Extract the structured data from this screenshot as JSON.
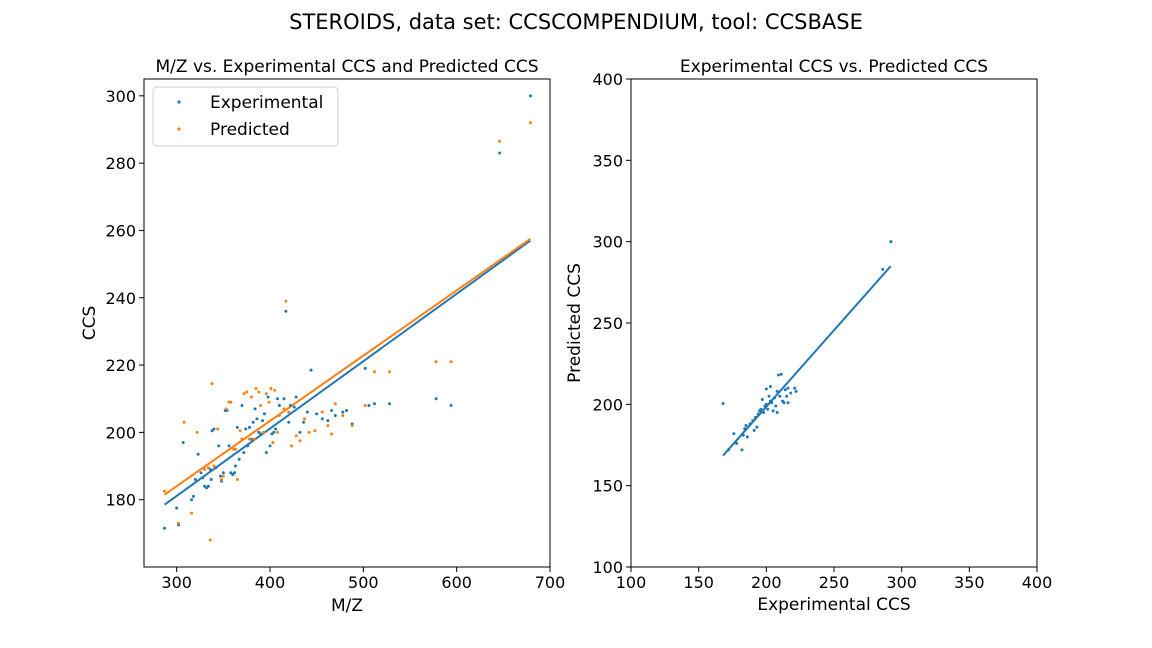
{
  "figure": {
    "suptitle": "STEROIDS, data set: CCSCOMPENDIUM, tool: CCSBASE"
  },
  "colors": {
    "experimental": "#1f77b4",
    "predicted": "#ff7f0e",
    "axis": "#000000",
    "legend_border": "#cccccc"
  },
  "chart_data": [
    {
      "type": "scatter",
      "title": "M/Z vs. Experimental CCS and Predicted CCS",
      "xlabel": "M/Z",
      "ylabel": "CCS",
      "xlim": [
        265,
        700
      ],
      "ylim": [
        160,
        305
      ],
      "xticks": [
        300,
        400,
        500,
        600,
        700
      ],
      "yticks": [
        180,
        200,
        220,
        240,
        260,
        280,
        300
      ],
      "legend": {
        "placement": "upper-left",
        "entries": [
          "Experimental",
          "Predicted"
        ]
      },
      "series": [
        {
          "name": "Experimental",
          "color": "#1f77b4",
          "points": [
            [
              287,
              171.5
            ],
            [
              300,
              177.5
            ],
            [
              302,
              172.5
            ],
            [
              307,
              197
            ],
            [
              316,
              180
            ],
            [
              318,
              181
            ],
            [
              320,
              186
            ],
            [
              323,
              193.5
            ],
            [
              326,
              188
            ],
            [
              328,
              186.5
            ],
            [
              330,
              184
            ],
            [
              332,
              183.5
            ],
            [
              334,
              184
            ],
            [
              336,
              189
            ],
            [
              337,
              186
            ],
            [
              338,
              200.5
            ],
            [
              340,
              201
            ],
            [
              342,
              189.5
            ],
            [
              345,
              196
            ],
            [
              347,
              187
            ],
            [
              348,
              185.5
            ],
            [
              350,
              188
            ],
            [
              352,
              206.5
            ],
            [
              354,
              206.5
            ],
            [
              356,
              196
            ],
            [
              358,
              188
            ],
            [
              360,
              187.5
            ],
            [
              362,
              188
            ],
            [
              363,
              190
            ],
            [
              365,
              201.5
            ],
            [
              367,
              192
            ],
            [
              370,
              208
            ],
            [
              372,
              194
            ],
            [
              374,
              201
            ],
            [
              376,
              196
            ],
            [
              378,
              201.5
            ],
            [
              380,
              198
            ],
            [
              382,
              203
            ],
            [
              384,
              207
            ],
            [
              386,
              204
            ],
            [
              388,
              200
            ],
            [
              390,
              199.5
            ],
            [
              392,
              203.5
            ],
            [
              394,
              205.5
            ],
            [
              396,
              194
            ],
            [
              398,
              210.5
            ],
            [
              400,
              196
            ],
            [
              402,
              199.5
            ],
            [
              404,
              200
            ],
            [
              406,
              201
            ],
            [
              408,
              210
            ],
            [
              410,
              208
            ],
            [
              415,
              210
            ],
            [
              417,
              236
            ],
            [
              420,
              203
            ],
            [
              422,
              208
            ],
            [
              426,
              207.5
            ],
            [
              428,
              210.5
            ],
            [
              432,
              200
            ],
            [
              436,
              203
            ],
            [
              440,
              206
            ],
            [
              444,
              218.5
            ],
            [
              450,
              205.5
            ],
            [
              456,
              204
            ],
            [
              462,
              203.5
            ],
            [
              466,
              206.5
            ],
            [
              470,
              205
            ],
            [
              478,
              206
            ],
            [
              482,
              206.5
            ],
            [
              488,
              202.5
            ],
            [
              502,
              219
            ],
            [
              506,
              208
            ],
            [
              512,
              208.5
            ],
            [
              528,
              208.5
            ],
            [
              578,
              210
            ],
            [
              594,
              208
            ],
            [
              646,
              283
            ],
            [
              679,
              300
            ]
          ]
        },
        {
          "name": "Predicted",
          "color": "#ff7f0e",
          "points": [
            [
              287,
              182.5
            ],
            [
              302,
              173
            ],
            [
              308,
              203
            ],
            [
              316,
              176
            ],
            [
              322,
              200
            ],
            [
              330,
              189
            ],
            [
              334,
              189.5
            ],
            [
              336,
              168
            ],
            [
              338,
              214.5
            ],
            [
              340,
              190
            ],
            [
              344,
              201
            ],
            [
              348,
              186
            ],
            [
              350,
              187
            ],
            [
              353,
              207
            ],
            [
              356,
              209
            ],
            [
              358,
              209
            ],
            [
              361,
              195
            ],
            [
              363,
              195
            ],
            [
              365,
              186
            ],
            [
              368,
              200.5
            ],
            [
              370,
              198
            ],
            [
              372,
              211.5
            ],
            [
              375,
              212
            ],
            [
              378,
              198
            ],
            [
              380,
              210.5
            ],
            [
              383,
              198
            ],
            [
              385,
              213
            ],
            [
              388,
              212
            ],
            [
              390,
              208
            ],
            [
              393,
              200
            ],
            [
              396,
              211.5
            ],
            [
              399,
              209
            ],
            [
              401,
              213
            ],
            [
              403,
              197
            ],
            [
              405,
              212.5
            ],
            [
              408,
              200
            ],
            [
              410,
              205
            ],
            [
              415,
              207
            ],
            [
              417,
              239
            ],
            [
              420,
              206
            ],
            [
              423,
              196
            ],
            [
              428,
              199
            ],
            [
              432,
              197.5
            ],
            [
              437,
              204
            ],
            [
              442,
              200
            ],
            [
              448,
              200.5
            ],
            [
              456,
              206
            ],
            [
              462,
              202
            ],
            [
              466,
              199.5
            ],
            [
              470,
              208.5
            ],
            [
              478,
              205
            ],
            [
              488,
              202
            ],
            [
              502,
              208
            ],
            [
              512,
              218
            ],
            [
              528,
              218
            ],
            [
              578,
              221
            ],
            [
              594,
              221
            ],
            [
              646,
              286.5
            ],
            [
              679,
              292
            ]
          ]
        },
        {
          "name": "Experimental",
          "type": "line",
          "color": "#1f77b4",
          "x": [
            287,
            679
          ],
          "y": [
            178.5,
            257
          ]
        },
        {
          "name": "Predicted",
          "type": "line",
          "color": "#ff7f0e",
          "x": [
            287,
            679
          ],
          "y": [
            181.5,
            257.5
          ]
        }
      ]
    },
    {
      "type": "scatter",
      "title": "Experimental CCS vs. Predicted CCS",
      "xlabel": "Experimental CCS",
      "ylabel": "Predicted CCS",
      "xlim": [
        100,
        400
      ],
      "ylim": [
        100,
        400
      ],
      "xticks": [
        100,
        150,
        200,
        250,
        300,
        350,
        400
      ],
      "yticks": [
        100,
        150,
        200,
        250,
        300,
        350,
        400
      ],
      "series": [
        {
          "color": "#1f77b4",
          "points": [
            [
              168,
              200.5
            ],
            [
              172,
              172
            ],
            [
              176,
              182
            ],
            [
              178,
              176
            ],
            [
              182,
              172
            ],
            [
              183,
              181
            ],
            [
              184,
              185
            ],
            [
              185,
              187
            ],
            [
              186,
              180
            ],
            [
              188,
              188
            ],
            [
              190,
              190
            ],
            [
              191,
              184
            ],
            [
              192,
              192
            ],
            [
              193,
              186
            ],
            [
              194,
              194
            ],
            [
              195,
              196
            ],
            [
              196,
              197
            ],
            [
              197,
              203
            ],
            [
              198,
              195
            ],
            [
              199,
              199
            ],
            [
              200,
              200
            ],
            [
              200,
              209.5
            ],
            [
              201,
              197
            ],
            [
              202,
              205
            ],
            [
              203,
              202
            ],
            [
              203,
              211
            ],
            [
              204,
              201
            ],
            [
              205,
              196
            ],
            [
              206,
              204
            ],
            [
              207,
              199
            ],
            [
              208,
              208
            ],
            [
              208,
              195
            ],
            [
              209,
              218
            ],
            [
              210,
              205
            ],
            [
              211,
              218.5
            ],
            [
              212,
              202
            ],
            [
              213,
              201
            ],
            [
              214,
              209
            ],
            [
              215,
              205
            ],
            [
              216,
              210
            ],
            [
              216,
              201
            ],
            [
              218,
              207
            ],
            [
              221,
              210
            ],
            [
              222,
              208
            ],
            [
              286,
              283
            ],
            [
              292,
              300
            ]
          ]
        },
        {
          "type": "line",
          "color": "#1f77b4",
          "x": [
            168,
            292
          ],
          "y": [
            168.5,
            285
          ]
        }
      ]
    }
  ]
}
